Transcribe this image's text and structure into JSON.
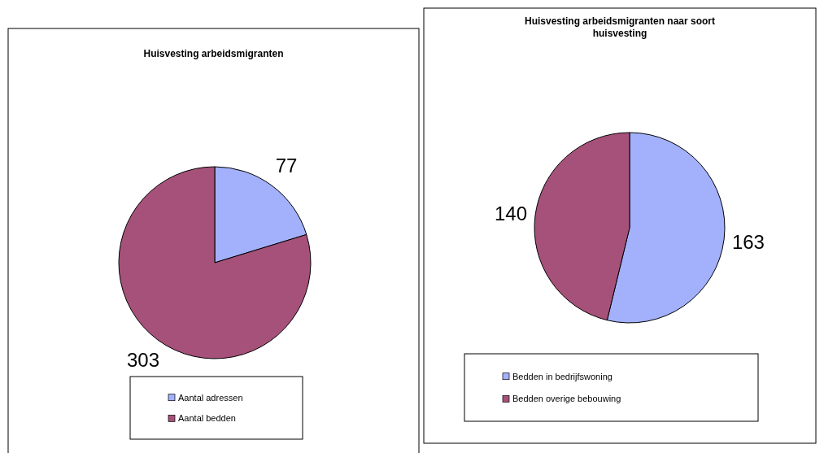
{
  "chart_data": [
    {
      "type": "pie",
      "title": "Huisvesting arbeidsmigranten",
      "categories": [
        "Aantal adressen",
        "Aantal bedden"
      ],
      "values": [
        77,
        303
      ],
      "colors": [
        "#a3b0fb",
        "#a6517a"
      ],
      "data_labels": true,
      "legend": "bottom"
    },
    {
      "type": "pie",
      "title": "Huisvesting arbeidsmigranten naar soort huisvesting",
      "categories": [
        "Bedden in bedrijfswoning",
        "Bedden overige bebouwing"
      ],
      "values": [
        163,
        140
      ],
      "colors": [
        "#a3b0fb",
        "#a6517a"
      ],
      "data_labels": true,
      "legend": "bottom"
    }
  ]
}
